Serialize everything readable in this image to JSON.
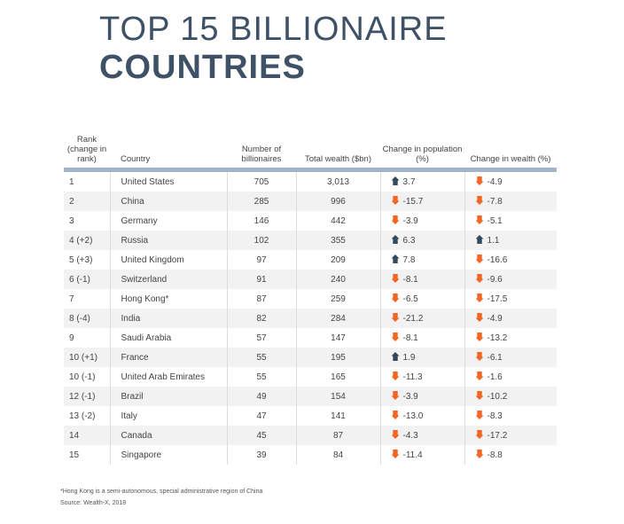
{
  "title": {
    "line1": "TOP 15 BILLIONAIRE",
    "line2": "COUNTRIES"
  },
  "headers": {
    "rank": "Rank (change in rank)",
    "country": "Country",
    "number": "Number of billionaires",
    "wealth": "Total wealth ($bn)",
    "pop_change": "Change in population (%)",
    "wealth_change": "Change in wealth (%)"
  },
  "colors": {
    "up": "#34495e",
    "down": "#f26522"
  },
  "rows": [
    [
      "1",
      "United States",
      "705",
      "3,013",
      "3.7",
      "-4.9"
    ],
    [
      "2",
      "China",
      "285",
      "996",
      "-15.7",
      "-7.8"
    ],
    [
      "3",
      "Germany",
      "146",
      "442",
      "-3.9",
      "-5.1"
    ],
    [
      "4 (+2)",
      "Russia",
      "102",
      "355",
      "6.3",
      "1.1"
    ],
    [
      "5 (+3)",
      "United Kingdom",
      "97",
      "209",
      "7.8",
      "-16.6"
    ],
    [
      "6 (-1)",
      "Switzerland",
      "91",
      "240",
      "-8.1",
      "-9.6"
    ],
    [
      "7",
      "Hong Kong*",
      "87",
      "259",
      "-6.5",
      "-17.5"
    ],
    [
      "8 (-4)",
      "India",
      "82",
      "284",
      "-21.2",
      "-4.9"
    ],
    [
      "9",
      "Saudi Arabia",
      "57",
      "147",
      "-8.1",
      "-13.2"
    ],
    [
      "10 (+1)",
      "France",
      "55",
      "195",
      "1.9",
      "-6.1"
    ],
    [
      "10 (-1)",
      "United Arab Emirates",
      "55",
      "165",
      "-11.3",
      "-1.6"
    ],
    [
      "12 (-1)",
      "Brazil",
      "49",
      "154",
      "-3.9",
      "-10.2"
    ],
    [
      "13 (-2)",
      "Italy",
      "47",
      "141",
      "-13.0",
      "-8.3"
    ],
    [
      "14",
      "Canada",
      "45",
      "87",
      "-4.3",
      "-17.2"
    ],
    [
      "15",
      "Singapore",
      "39",
      "84",
      "-11.4",
      "-8.8"
    ]
  ],
  "footnote": "*Hong Kong is a semi-autonomous, special administrative region of China",
  "source": "Source: Wealth-X, 2018"
}
